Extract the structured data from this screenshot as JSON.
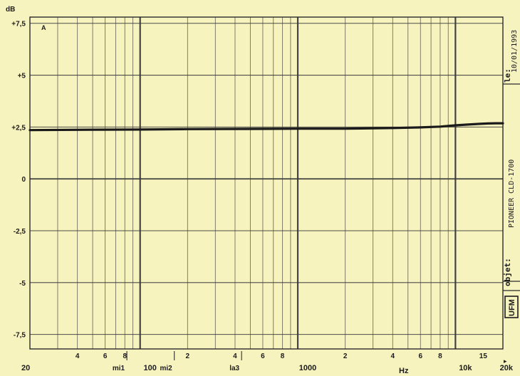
{
  "chart_data": {
    "type": "line",
    "title": "",
    "ylabel": "dB",
    "xlabel": "Hz",
    "x_scale": "log",
    "xlim": [
      20,
      20000
    ],
    "ylim": [
      -8.2,
      7.8
    ],
    "grid": true,
    "y_ticks": [
      {
        "value": 7.5,
        "label": "+7,5"
      },
      {
        "value": 5,
        "label": "+5"
      },
      {
        "value": 2.5,
        "label": "+2,5"
      },
      {
        "value": 0,
        "label": "0"
      },
      {
        "value": -2.5,
        "label": "-2,5"
      },
      {
        "value": -5,
        "label": "-5"
      },
      {
        "value": -7.5,
        "label": "-7,5"
      }
    ],
    "x_ticks": [
      {
        "value": 20,
        "label": "20"
      },
      {
        "value": 40,
        "label": "4"
      },
      {
        "value": 60,
        "label": "6"
      },
      {
        "value": 80,
        "label": "8"
      },
      {
        "value": 100,
        "label": "100"
      },
      {
        "value": 200,
        "label": "2"
      },
      {
        "value": 400,
        "label": "4"
      },
      {
        "value": 600,
        "label": "6"
      },
      {
        "value": 800,
        "label": "8"
      },
      {
        "value": 1000,
        "label": "1000"
      },
      {
        "value": 2000,
        "label": "2"
      },
      {
        "value": 4000,
        "label": "4"
      },
      {
        "value": 6000,
        "label": "6"
      },
      {
        "value": 8000,
        "label": "8"
      },
      {
        "value": 10000,
        "label": "10k"
      },
      {
        "value": 15000,
        "label": "15"
      },
      {
        "value": 20000,
        "label": "20k"
      }
    ],
    "note_markers": [
      {
        "value": 82.4,
        "label": "mi1"
      },
      {
        "value": 164.8,
        "label": "mi2"
      },
      {
        "value": 440,
        "label": "la3"
      }
    ],
    "corner_label": "A",
    "series": [
      {
        "x": [
          20,
          50,
          100,
          200,
          500,
          1000,
          2000,
          4000,
          6000,
          8000,
          10000,
          12000,
          14000,
          16000,
          18000,
          20000
        ],
        "y": [
          2.35,
          2.37,
          2.38,
          2.4,
          2.41,
          2.42,
          2.42,
          2.45,
          2.48,
          2.52,
          2.58,
          2.62,
          2.65,
          2.67,
          2.68,
          2.68
        ]
      }
    ]
  },
  "sidebar": {
    "date_label": "le:",
    "date_value": "10/01/1993",
    "object_value": "PIONEER CLD-1700",
    "object_label": "objet:",
    "logo_text": "UFM"
  },
  "colors": {
    "paper": "#f7f3bf",
    "grid": "#3a3a3a",
    "curve": "#1a1a1a",
    "text": "#1c1c1c"
  }
}
